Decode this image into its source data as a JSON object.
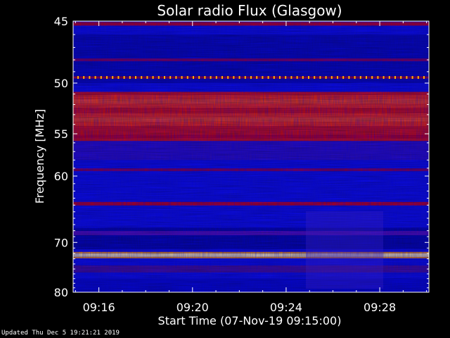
{
  "chart_data": {
    "type": "heatmap",
    "title": "Solar radio Flux (Glasgow)",
    "xlabel": "Start Time (07-Nov-19 09:15:00)",
    "ylabel": "Frequency [MHz]",
    "x_ticks": [
      "09:16",
      "09:20",
      "09:24",
      "09:28"
    ],
    "x_tick_minutes": [
      16,
      20,
      24,
      28
    ],
    "x_range_minutes": [
      14.9,
      30.1
    ],
    "y_ticks": [
      45,
      50,
      55,
      60,
      70,
      80
    ],
    "y_range": [
      45,
      80
    ],
    "y_scale": "reciprocal",
    "grid": false,
    "colormap": [
      "#000044",
      "#0000aa",
      "#1a1aff",
      "#6a00aa",
      "#cc0000",
      "#ff2200",
      "#ff6600",
      "#ffcc00",
      "#ffffcc"
    ],
    "bands": [
      {
        "freq": 45.2,
        "intensity": "red"
      },
      {
        "freq": 48.0,
        "intensity": "dark-red"
      },
      {
        "freq": 49.5,
        "intensity": "orange-dotted"
      },
      {
        "freq": 51.7,
        "intensity": "bright-red"
      },
      {
        "freq": 53.5,
        "intensity": "bright-red"
      },
      {
        "freq": 55.3,
        "intensity": "red"
      },
      {
        "freq": 59.2,
        "intensity": "dark-red"
      },
      {
        "freq": 63.8,
        "intensity": "red"
      },
      {
        "freq": 68.4,
        "intensity": "purple"
      },
      {
        "freq": 72.3,
        "intensity": "white-yellow"
      },
      {
        "freq": 75.0,
        "intensity": "dark-purple"
      }
    ]
  },
  "footer": {
    "updated": "Updated Thu Dec  5 19:21:21 2019"
  }
}
